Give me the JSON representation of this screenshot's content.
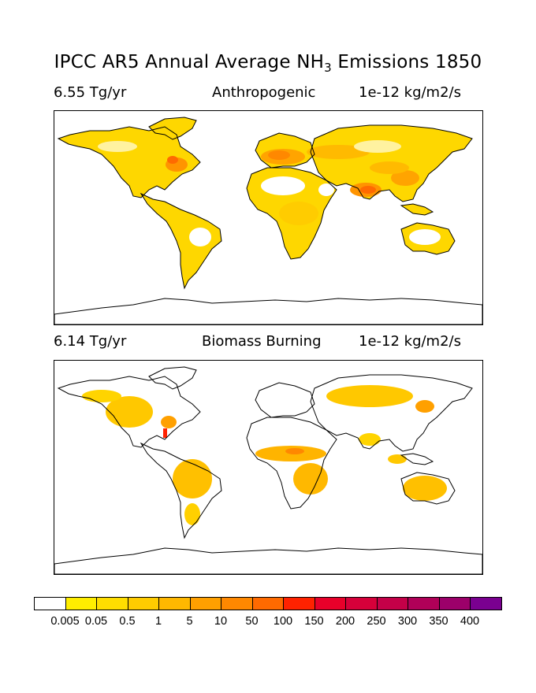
{
  "title": {
    "prefix": "IPCC AR5 Annual Average NH",
    "subscript": "3",
    "suffix": " Emissions 1850"
  },
  "panels": [
    {
      "total": "6.55 Tg/yr",
      "name": "Anthropogenic",
      "units": "1e-12 kg/m2/s"
    },
    {
      "total": "6.14 Tg/yr",
      "name": "Biomass Burning",
      "units": "1e-12 kg/m2/s"
    }
  ],
  "colorbar": {
    "colors": [
      "#ffffff",
      "#ffee00",
      "#ffde00",
      "#ffcc00",
      "#ffb800",
      "#ffa000",
      "#ff8800",
      "#ff6a00",
      "#ff2200",
      "#e8002a",
      "#d6003a",
      "#c40048",
      "#b00058",
      "#9c006a",
      "#7a0090"
    ],
    "labels": [
      "0.005",
      "0.05",
      "0.5",
      "1",
      "5",
      "10",
      "50",
      "100",
      "150",
      "200",
      "250",
      "300",
      "350",
      "400"
    ]
  }
}
